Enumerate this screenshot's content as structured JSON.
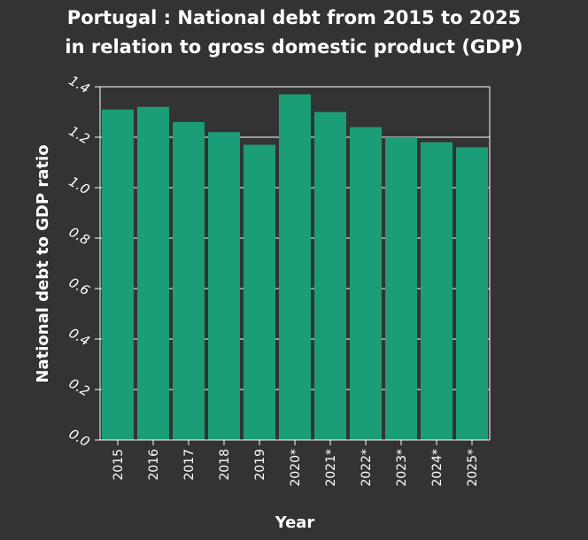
{
  "chart_data": {
    "type": "bar",
    "title_line1": "Portugal : National debt from 2015 to 2025",
    "title_line2": "in relation to gross domestic product (GDP)",
    "xlabel": "Year",
    "ylabel": "National debt to GDP ratio",
    "categories": [
      "2015",
      "2016",
      "2017",
      "2018",
      "2019",
      "2020*",
      "2021*",
      "2022*",
      "2023*",
      "2024*",
      "2025*"
    ],
    "values": [
      1.31,
      1.32,
      1.26,
      1.22,
      1.17,
      1.37,
      1.3,
      1.24,
      1.2,
      1.18,
      1.16
    ],
    "ylim": [
      0,
      1.4
    ],
    "yticks": [
      "0.0",
      "0.2",
      "0.4",
      "0.6",
      "0.8",
      "1.0",
      "1.2",
      "1.4"
    ],
    "grid": true,
    "legend": "none",
    "colors": {
      "background": "#333333",
      "bar": "#1b9e77",
      "grid": "#ffffff",
      "text": "#ffffff"
    }
  }
}
